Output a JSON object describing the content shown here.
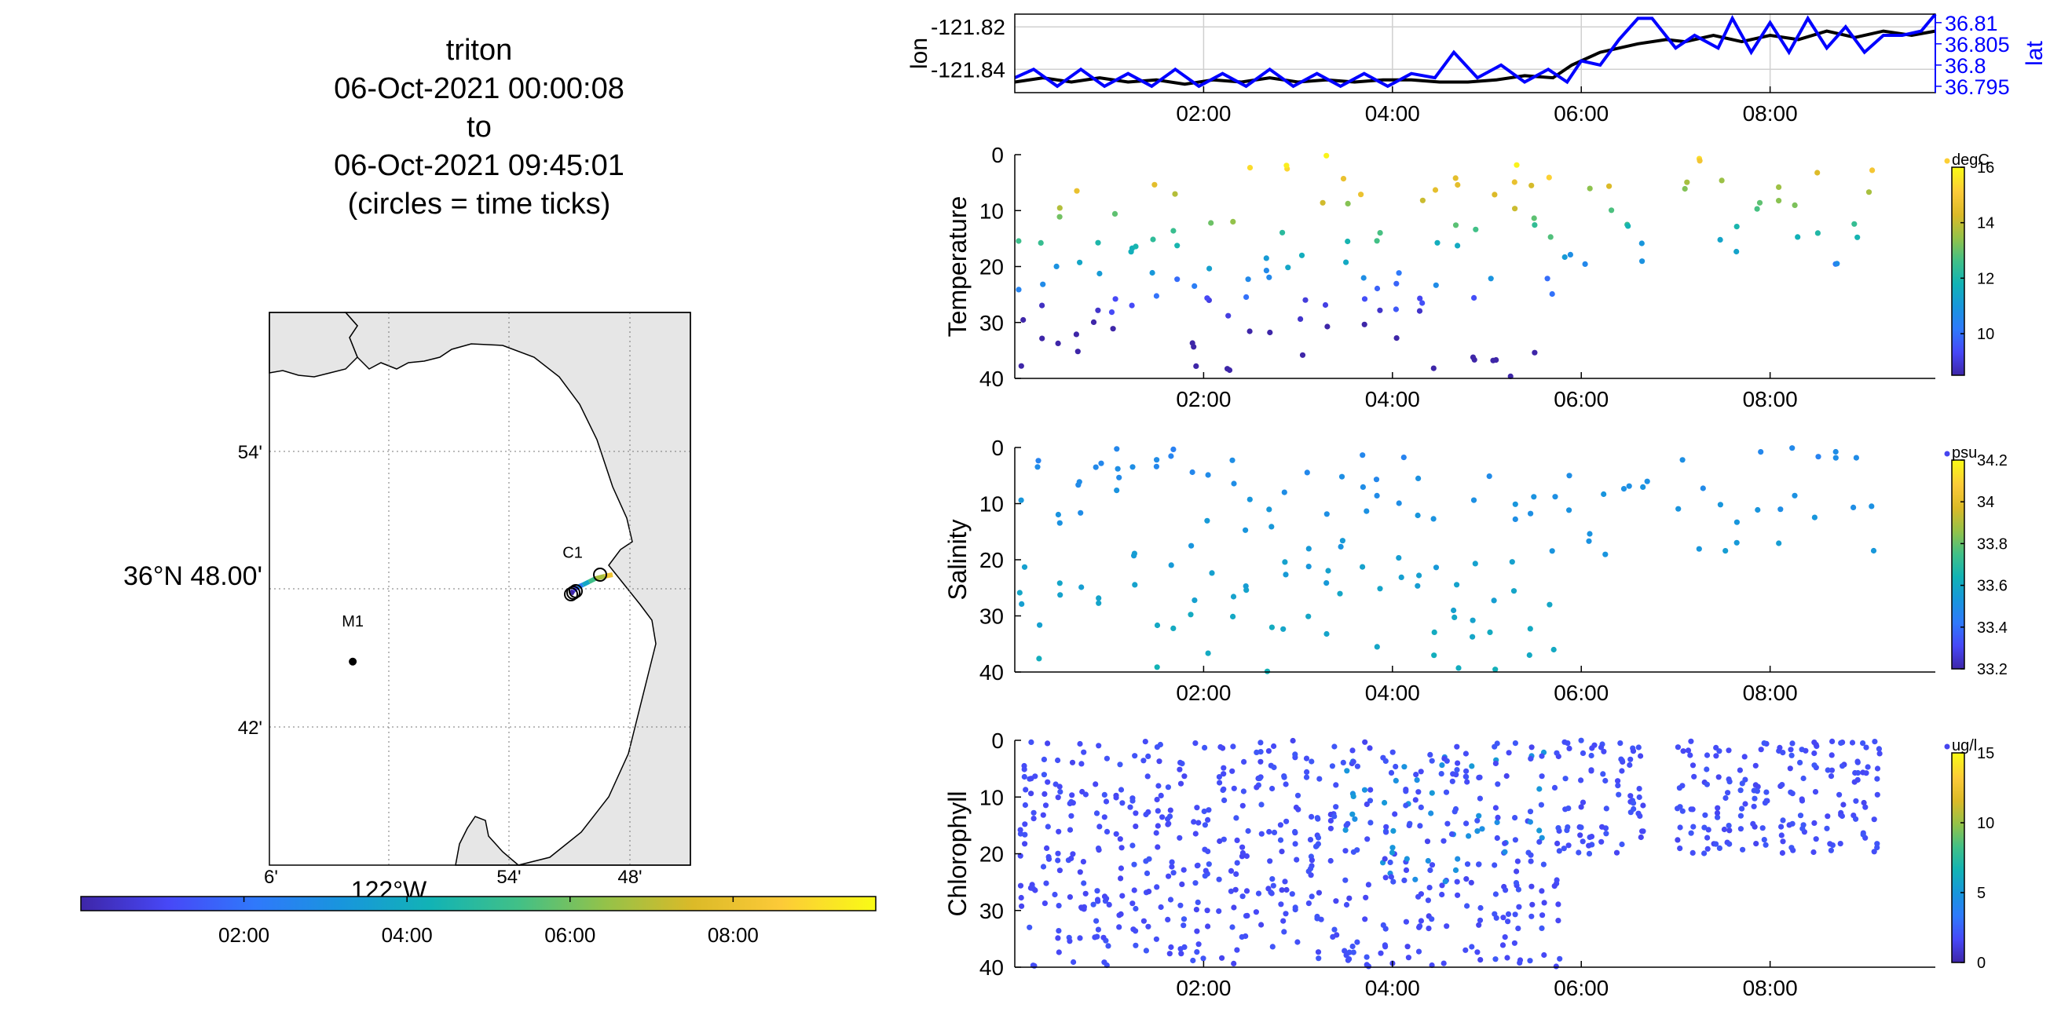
{
  "title": {
    "line1": "triton",
    "line2": "06-Oct-2021 00:00:08",
    "line3": "to",
    "line4": "06-Oct-2021 09:45:01",
    "line5": "(circles = time ticks)"
  },
  "colors": {
    "axis": "#000000",
    "grid": "#c8c8c8",
    "lat_line": "#0000ff",
    "lon_line": "#000000",
    "land": "#e6e6e6",
    "colormap": [
      "#3e26a8",
      "#4748f7",
      "#2f79fb",
      "#1896dc",
      "#12b3b5",
      "#41c087",
      "#94c249",
      "#dbba28",
      "#fcca38",
      "#f9fb15"
    ]
  },
  "map": {
    "lat_ticks": [
      "54'",
      "36°N 48.00'",
      "42'"
    ],
    "lon_ticks": [
      "6'",
      "54'",
      "48'"
    ],
    "lon_label": "122°W",
    "stations": [
      {
        "name": "M1",
        "lat": 36.747,
        "lon": -122.03
      },
      {
        "name": "C1",
        "lat": 36.797,
        "lon": -121.847
      }
    ],
    "colorbar_ticks": [
      "02:00",
      "04:00",
      "06:00",
      "08:00"
    ]
  },
  "chart_data": [
    {
      "type": "line",
      "title": "",
      "xlabel": "",
      "ylabel": "lon",
      "ylabel_right": "lat",
      "x_ticks": [
        "02:00",
        "04:00",
        "06:00",
        "08:00"
      ],
      "x_range_hours": [
        0,
        9.75
      ],
      "y_ticks_left": [
        "-121.82",
        "-121.84"
      ],
      "y_ticks_right": [
        "36.81",
        "36.805",
        "36.8",
        "36.795"
      ],
      "ylim_left": [
        -121.851,
        -121.814
      ],
      "ylim_right": [
        36.7935,
        36.812
      ],
      "series": [
        {
          "name": "lon",
          "axis": "left",
          "color": "#000000",
          "x": [
            0,
            0.3,
            0.6,
            0.9,
            1.2,
            1.5,
            1.8,
            2.1,
            2.4,
            2.7,
            3.0,
            3.3,
            3.6,
            3.9,
            4.2,
            4.5,
            4.8,
            5.1,
            5.4,
            5.7,
            5.9,
            6.2,
            6.6,
            6.9,
            7.1,
            7.4,
            7.7,
            8.0,
            8.3,
            8.6,
            8.9,
            9.2,
            9.5,
            9.75
          ],
          "y": [
            -121.846,
            -121.844,
            -121.846,
            -121.844,
            -121.846,
            -121.845,
            -121.847,
            -121.845,
            -121.846,
            -121.844,
            -121.846,
            -121.845,
            -121.846,
            -121.845,
            -121.845,
            -121.846,
            -121.846,
            -121.845,
            -121.843,
            -121.844,
            -121.838,
            -121.832,
            -121.828,
            -121.826,
            -121.827,
            -121.824,
            -121.827,
            -121.824,
            -121.826,
            -121.822,
            -121.825,
            -121.822,
            -121.824,
            -121.822
          ]
        },
        {
          "name": "lat",
          "axis": "right",
          "color": "#0000ff",
          "x": [
            0,
            0.2,
            0.45,
            0.7,
            0.95,
            1.2,
            1.45,
            1.7,
            1.95,
            2.2,
            2.45,
            2.7,
            2.95,
            3.2,
            3.45,
            3.7,
            3.95,
            4.2,
            4.45,
            4.65,
            4.9,
            5.15,
            5.4,
            5.65,
            5.85,
            6.0,
            6.2,
            6.4,
            6.6,
            6.75,
            7.0,
            7.2,
            7.45,
            7.6,
            7.8,
            8.0,
            8.2,
            8.4,
            8.6,
            8.8,
            9.0,
            9.2,
            9.4,
            9.6,
            9.75
          ],
          "y": [
            36.797,
            36.799,
            36.795,
            36.799,
            36.795,
            36.798,
            36.795,
            36.799,
            36.795,
            36.798,
            36.795,
            36.799,
            36.795,
            36.798,
            36.795,
            36.798,
            36.795,
            36.798,
            36.797,
            36.803,
            36.797,
            36.8,
            36.796,
            36.799,
            36.796,
            36.801,
            36.8,
            36.806,
            36.811,
            36.811,
            36.804,
            36.807,
            36.804,
            36.811,
            36.803,
            36.81,
            36.803,
            36.811,
            36.804,
            36.809,
            36.803,
            36.807,
            36.807,
            36.808,
            36.812
          ]
        }
      ]
    },
    {
      "type": "scatter",
      "ylabel": "Temperature",
      "xlabel": "",
      "unit": "degC",
      "x_ticks": [
        "02:00",
        "04:00",
        "06:00",
        "08:00"
      ],
      "y_ticks": [
        "0",
        "10",
        "20",
        "30",
        "40"
      ],
      "ylim": [
        0,
        40
      ],
      "colorbar_ticks": [
        "16",
        "14",
        "12",
        "10"
      ],
      "clim": [
        8.5,
        16
      ]
    },
    {
      "type": "scatter",
      "ylabel": "Salinity",
      "xlabel": "",
      "unit": "psu",
      "x_ticks": [
        "02:00",
        "04:00",
        "06:00",
        "08:00"
      ],
      "y_ticks": [
        "0",
        "10",
        "20",
        "30",
        "40"
      ],
      "ylim": [
        0,
        40
      ],
      "colorbar_ticks": [
        "34.2",
        "34",
        "33.8",
        "33.6",
        "33.4",
        "33.2"
      ],
      "clim": [
        33.2,
        34.2
      ]
    },
    {
      "type": "scatter",
      "ylabel": "Chlorophyll",
      "xlabel": "",
      "unit": "ug/l",
      "x_ticks": [
        "02:00",
        "04:00",
        "06:00",
        "08:00"
      ],
      "y_ticks": [
        "0",
        "10",
        "20",
        "30",
        "40"
      ],
      "ylim": [
        0,
        40
      ],
      "colorbar_ticks": [
        "15",
        "10",
        "5",
        "0"
      ],
      "clim": [
        0,
        15
      ]
    }
  ]
}
